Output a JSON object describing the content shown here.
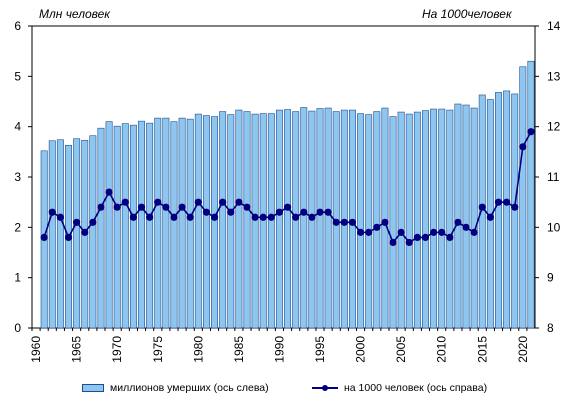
{
  "chart_data": {
    "type": "bar+line",
    "left_axis_title": "Млн  человек",
    "right_axis_title": "На 1000человек",
    "left_ylim": [
      0,
      6
    ],
    "right_ylim": [
      8,
      14
    ],
    "left_ticks": [
      "0",
      "1",
      "2",
      "3",
      "4",
      "5",
      "6"
    ],
    "right_ticks": [
      "8",
      "9",
      "10",
      "11",
      "12",
      "13",
      "14"
    ],
    "x_start": 1960,
    "x_end": 2021,
    "x_tick_labels": [
      "1960",
      "1965",
      "1970",
      "1975",
      "1980",
      "1985",
      "1990",
      "1995",
      "2000",
      "2005",
      "2010",
      "2015",
      "2020"
    ],
    "grid": false,
    "legend_position": "bottom",
    "series": [
      {
        "name": "миллионов  умерших (ось слева)",
        "kind": "bar",
        "axis": "left",
        "color": "#8fc6f0",
        "edge_color": "#1b4f8f",
        "x": [
          1961,
          1962,
          1963,
          1964,
          1965,
          1966,
          1967,
          1968,
          1969,
          1970,
          1971,
          1972,
          1973,
          1974,
          1975,
          1976,
          1977,
          1978,
          1979,
          1980,
          1981,
          1982,
          1983,
          1984,
          1985,
          1986,
          1987,
          1988,
          1989,
          1990,
          1991,
          1992,
          1993,
          1994,
          1995,
          1996,
          1997,
          1998,
          1999,
          2000,
          2001,
          2002,
          2003,
          2004,
          2005,
          2006,
          2007,
          2008,
          2009,
          2010,
          2011,
          2012,
          2013,
          2014,
          2015,
          2016,
          2017,
          2018,
          2019,
          2020,
          2021
        ],
        "values": [
          3.52,
          3.72,
          3.74,
          3.63,
          3.76,
          3.73,
          3.82,
          3.97,
          4.1,
          4.01,
          4.06,
          4.03,
          4.11,
          4.07,
          4.17,
          4.17,
          4.1,
          4.17,
          4.15,
          4.25,
          4.22,
          4.2,
          4.3,
          4.24,
          4.33,
          4.3,
          4.25,
          4.26,
          4.26,
          4.33,
          4.34,
          4.3,
          4.38,
          4.31,
          4.36,
          4.37,
          4.3,
          4.33,
          4.33,
          4.26,
          4.24,
          4.3,
          4.37,
          4.2,
          4.29,
          4.25,
          4.29,
          4.32,
          4.35,
          4.35,
          4.33,
          4.45,
          4.43,
          4.37,
          4.63,
          4.54,
          4.68,
          4.71,
          4.65,
          5.19,
          5.3
        ]
      },
      {
        "name": "на 1000 человек (ось справа)",
        "kind": "line",
        "axis": "right",
        "color": "#000080",
        "x": [
          1961,
          1962,
          1963,
          1964,
          1965,
          1966,
          1967,
          1968,
          1969,
          1970,
          1971,
          1972,
          1973,
          1974,
          1975,
          1976,
          1977,
          1978,
          1979,
          1980,
          1981,
          1982,
          1983,
          1984,
          1985,
          1986,
          1987,
          1988,
          1989,
          1990,
          1991,
          1992,
          1993,
          1994,
          1995,
          1996,
          1997,
          1998,
          1999,
          2000,
          2001,
          2002,
          2003,
          2004,
          2005,
          2006,
          2007,
          2008,
          2009,
          2010,
          2011,
          2012,
          2013,
          2014,
          2015,
          2016,
          2017,
          2018,
          2019,
          2020,
          2021
        ],
        "values": [
          9.8,
          10.3,
          10.2,
          9.8,
          10.1,
          9.9,
          10.1,
          10.4,
          10.7,
          10.4,
          10.5,
          10.2,
          10.4,
          10.2,
          10.5,
          10.4,
          10.2,
          10.4,
          10.2,
          10.5,
          10.3,
          10.2,
          10.5,
          10.3,
          10.5,
          10.4,
          10.2,
          10.2,
          10.2,
          10.3,
          10.4,
          10.2,
          10.3,
          10.2,
          10.3,
          10.3,
          10.1,
          10.1,
          10.1,
          9.9,
          9.9,
          10.0,
          10.1,
          9.7,
          9.9,
          9.7,
          9.8,
          9.8,
          9.9,
          9.9,
          9.8,
          10.1,
          10.0,
          9.9,
          10.4,
          10.2,
          10.5,
          10.5,
          10.4,
          11.6,
          11.9
        ]
      }
    ]
  }
}
